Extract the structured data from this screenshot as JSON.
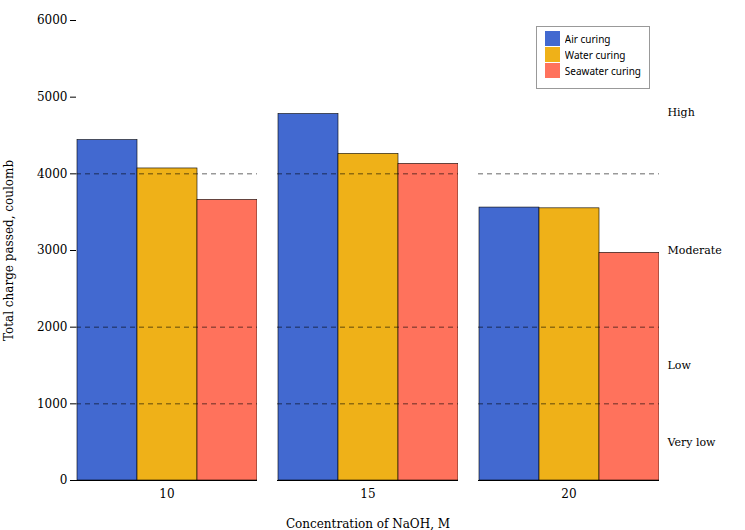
{
  "chart_data": {
    "type": "bar",
    "xlabel": "Concentration of NaOH, M",
    "ylabel": "Total charge passed, coulomb",
    "categories": [
      "10",
      "15",
      "20"
    ],
    "series": [
      {
        "name": "Air curing",
        "values": [
          4440,
          4780,
          3560
        ]
      },
      {
        "name": "Water curing",
        "values": [
          4070,
          4260,
          3550
        ]
      },
      {
        "name": "Seawater curing",
        "values": [
          3660,
          4130,
          2970
        ]
      }
    ],
    "ylim": [
      0,
      6000
    ],
    "yticks": [
      0,
      1000,
      2000,
      3000,
      4000,
      5000,
      6000
    ],
    "hlines": [
      1000,
      2000,
      4000
    ],
    "annotations": [
      {
        "text": "High",
        "y": 4800
      },
      {
        "text": "Moderate",
        "y": 3000
      },
      {
        "text": "Low",
        "y": 1500
      },
      {
        "text": "Very low",
        "y": 500
      }
    ],
    "legend": "upper right",
    "grid": false
  }
}
